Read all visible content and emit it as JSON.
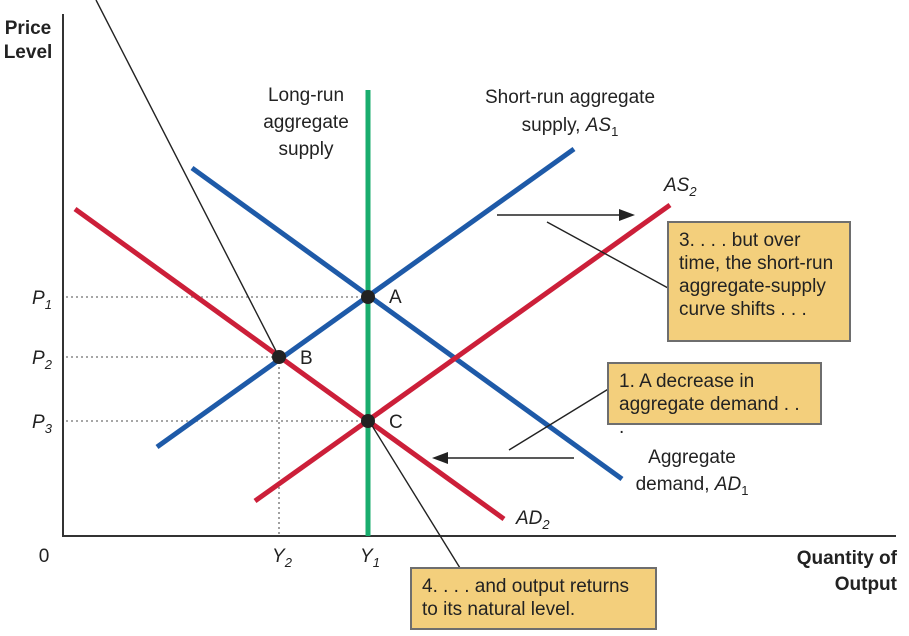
{
  "axes": {
    "y_title_line1": "Price",
    "y_title_line2": "Level",
    "x_title_line1": "Quantity of",
    "x_title_line2": "Output",
    "origin": "0"
  },
  "price_ticks": [
    {
      "letter": "P",
      "sub": "1"
    },
    {
      "letter": "P",
      "sub": "2"
    },
    {
      "letter": "P",
      "sub": "3"
    }
  ],
  "output_ticks": [
    {
      "letter": "Y",
      "sub": "2"
    },
    {
      "letter": "Y",
      "sub": "1"
    }
  ],
  "curve_labels": {
    "lras": [
      "Long-run",
      "aggregate",
      "supply"
    ],
    "sras1_line1": "Short-run aggregate",
    "sras1_line2_text": "supply, ",
    "sras1_name": "AS",
    "sras1_sub": "1",
    "as2_name": "AS",
    "as2_sub": "2",
    "ad1_line1": "Aggregate",
    "ad1_line2_text": "demand, ",
    "ad1_name": "AD",
    "ad1_sub": "1",
    "ad2_name": "AD",
    "ad2_sub": "2"
  },
  "points": {
    "a": "A",
    "b": "B",
    "c": "C"
  },
  "notes": {
    "note1": "1. A decrease in\naggregate demand . . .",
    "note3": "3. . . . but over\ntime, the short-run\naggregate-supply\ncurve shifts . . .",
    "note4": "4. . . . and output returns\nto its natural level."
  },
  "colors": {
    "supply": "#1e5aa8",
    "demand": "#cc1f39",
    "lras": "#1aad6e",
    "note_fill": "#f3cf7c"
  }
}
